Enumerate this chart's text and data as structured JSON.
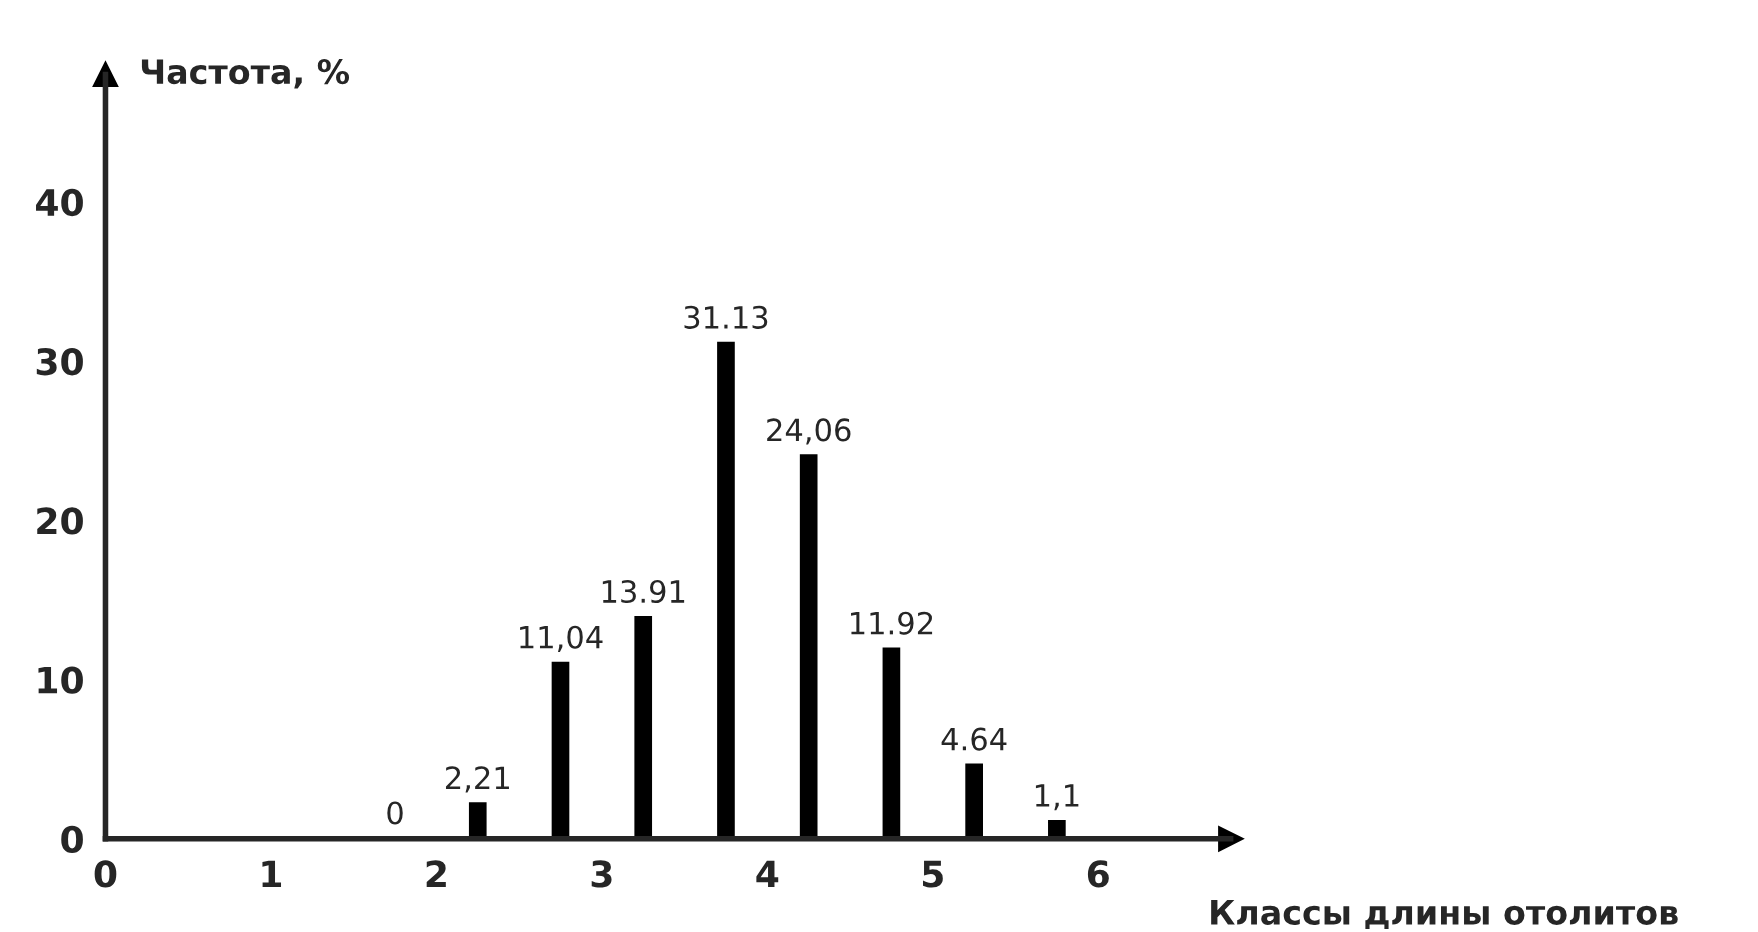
{
  "chart_data": {
    "type": "bar",
    "xlabel": "Классы длины отолитов",
    "ylabel": "Частота, %",
    "x": [
      1.75,
      2.25,
      2.75,
      3.25,
      3.75,
      4.25,
      4.75,
      5.25,
      5.75
    ],
    "values": [
      0,
      2.21,
      11.04,
      13.91,
      31.13,
      24.06,
      11.92,
      4.64,
      1.1
    ],
    "value_labels": [
      "0",
      "2,21",
      "11,04",
      "13.91",
      "31.13",
      "24,06",
      "11.92",
      "4.64",
      "1,1"
    ],
    "color": "#000000",
    "xlim": [
      0,
      6.8
    ],
    "ylim": [
      0,
      48
    ],
    "xticks": [
      0,
      1,
      2,
      3,
      4,
      5,
      6
    ],
    "yticks": [
      0,
      10,
      20,
      30,
      40
    ],
    "grid": false
  }
}
